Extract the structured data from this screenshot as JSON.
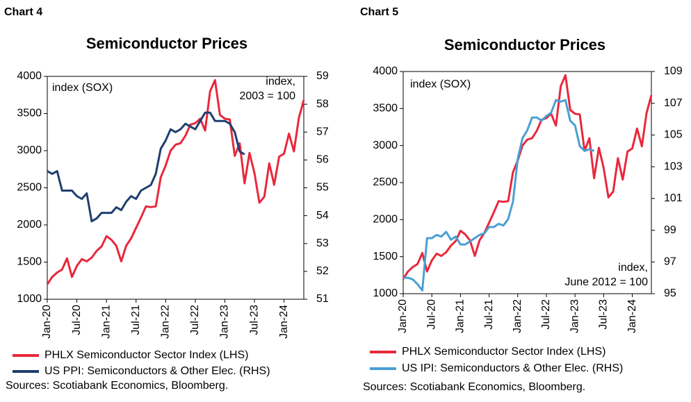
{
  "chart_data": [
    {
      "type": "line",
      "label": "Chart 4",
      "title": "Semiconductor Prices",
      "annotations": [
        [
          "index (SOX)"
        ],
        [
          "index,",
          "2003 = 100"
        ]
      ],
      "categories": [
        "Jan-20",
        null,
        null,
        null,
        null,
        null,
        "Jul-20",
        null,
        null,
        null,
        null,
        null,
        "Jan-21",
        null,
        null,
        null,
        null,
        null,
        "Jul-21",
        null,
        null,
        null,
        null,
        null,
        "Jan-22",
        null,
        null,
        null,
        null,
        null,
        "Jul-22",
        null,
        null,
        null,
        null,
        null,
        "Jan-23",
        null,
        null,
        null,
        null,
        null,
        "Jul-23",
        null,
        null,
        null,
        null,
        null,
        "Jan-24",
        null,
        null,
        null,
        null
      ],
      "series": [
        {
          "name": "PHLX Semiconductor Sector Index (LHS)",
          "color": "#e8283c",
          "axis": "y",
          "values": [
            1200,
            1300,
            1360,
            1400,
            1550,
            1300,
            1450,
            1540,
            1510,
            1560,
            1650,
            1710,
            1850,
            1800,
            1720,
            1510,
            1720,
            1820,
            1960,
            2100,
            2250,
            2240,
            2250,
            2640,
            2800,
            3000,
            3080,
            3100,
            3200,
            3350,
            3370,
            3430,
            3270,
            3800,
            3950,
            3480,
            3430,
            3420,
            2930,
            3100,
            2560,
            2970,
            2700,
            2300,
            2380,
            2830,
            2540,
            2920,
            2960,
            3230,
            2990,
            3440,
            3680
          ]
        },
        {
          "name": "US PPI: Semiconductors & Other Elec. (RHS)",
          "color": "#1f3e6e",
          "axis": "y2",
          "values": [
            55.6,
            55.5,
            55.6,
            54.9,
            54.9,
            54.9,
            54.7,
            54.6,
            54.8,
            53.8,
            53.9,
            54.1,
            54.1,
            54.1,
            54.3,
            54.2,
            54.5,
            54.7,
            54.6,
            54.9,
            55.0,
            55.1,
            55.5,
            56.4,
            56.7,
            57.1,
            57.0,
            57.1,
            57.3,
            57.2,
            57.1,
            57.4,
            57.7,
            57.7,
            57.4,
            57.4,
            57.4,
            57.3,
            57.0,
            56.3,
            56.2,
            null,
            null,
            null,
            null,
            null,
            null,
            null,
            null,
            null,
            null,
            null,
            null
          ]
        }
      ],
      "ylim": [
        1000,
        4000
      ],
      "yticks": [
        1000,
        1500,
        2000,
        2500,
        3000,
        3500,
        4000
      ],
      "y2lim": [
        51,
        59
      ],
      "y2ticks": [
        51,
        52,
        53,
        54,
        55,
        56,
        57,
        58,
        59
      ],
      "legend": "bottom",
      "source": "Sources: Scotiabank Economics, Bloomberg."
    },
    {
      "type": "line",
      "label": "Chart 5",
      "title": "Semiconductor Prices",
      "annotations": [
        [
          "index (SOX)"
        ],
        [
          "index,",
          "June 2012 = 100"
        ]
      ],
      "categories": [
        "Jan-20",
        null,
        null,
        null,
        null,
        null,
        "Jul-20",
        null,
        null,
        null,
        null,
        null,
        "Jan-21",
        null,
        null,
        null,
        null,
        null,
        "Jul-21",
        null,
        null,
        null,
        null,
        null,
        "Jan-22",
        null,
        null,
        null,
        null,
        null,
        "Jul-22",
        null,
        null,
        null,
        null,
        null,
        "Jan-23",
        null,
        null,
        null,
        null,
        null,
        "Jul-23",
        null,
        null,
        null,
        null,
        null,
        "Jan-24",
        null,
        null,
        null,
        null
      ],
      "series": [
        {
          "name": "PHLX Semiconductor Sector Index (LHS)",
          "color": "#e8283c",
          "axis": "y",
          "values": [
            1200,
            1300,
            1360,
            1400,
            1550,
            1300,
            1450,
            1540,
            1510,
            1560,
            1650,
            1710,
            1850,
            1800,
            1720,
            1510,
            1720,
            1820,
            1960,
            2100,
            2250,
            2240,
            2250,
            2640,
            2800,
            3000,
            3080,
            3100,
            3200,
            3350,
            3370,
            3430,
            3270,
            3800,
            3950,
            3480,
            3430,
            3420,
            2930,
            3100,
            2560,
            2970,
            2700,
            2300,
            2380,
            2830,
            2540,
            2920,
            2960,
            3230,
            2990,
            3440,
            3680
          ]
        },
        {
          "name": "US IPI: Semiconductors & Other Elec. (RHS)",
          "color": "#4a9fd4",
          "axis": "y2",
          "values": [
            96.0,
            96.0,
            95.9,
            95.6,
            95.2,
            98.5,
            98.5,
            98.7,
            98.6,
            98.9,
            98.4,
            98.6,
            98.1,
            98.1,
            98.3,
            98.5,
            98.7,
            98.8,
            99.2,
            99.2,
            99.4,
            99.3,
            99.7,
            100.8,
            103.5,
            104.8,
            105.3,
            106.1,
            106.1,
            105.9,
            106.2,
            106.4,
            107.2,
            107.1,
            107.2,
            105.9,
            105.6,
            104.3,
            104.0,
            104.1,
            104.0,
            null,
            null,
            null,
            null,
            null,
            null,
            null,
            null,
            null,
            null,
            null,
            null
          ]
        }
      ],
      "ylim": [
        1000,
        4000
      ],
      "yticks": [
        1000,
        1500,
        2000,
        2500,
        3000,
        3500,
        4000
      ],
      "y2lim": [
        95,
        109
      ],
      "y2ticks": [
        95,
        97,
        99,
        101,
        103,
        105,
        107,
        109
      ],
      "legend": "bottom",
      "source": "Sources: Scotiabank Economics, Bloomberg."
    }
  ]
}
